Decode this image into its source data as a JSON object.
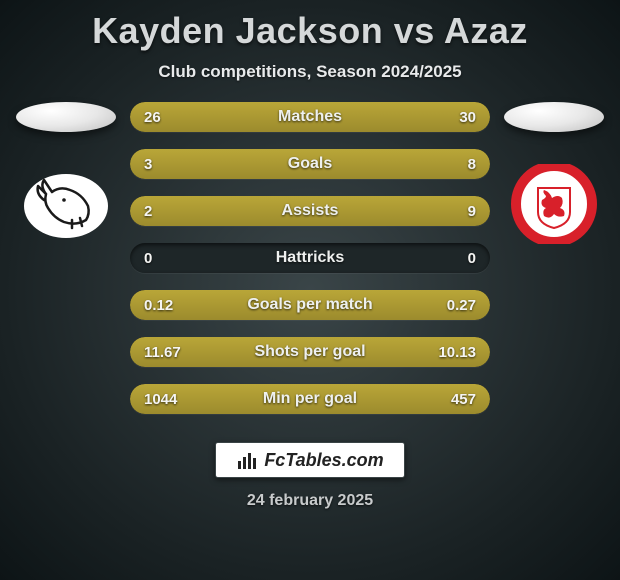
{
  "title": "Kayden Jackson vs Azaz",
  "subtitle": "Club competitions, Season 2024/2025",
  "date": "24 february 2025",
  "brand": "FcTables.com",
  "colors": {
    "bar_fill": "#9c8b2d",
    "bar_bg": "#1e2628",
    "text": "#f5f5f3",
    "background_inner": "#3a4548",
    "background_outer": "#0d1416"
  },
  "left_crest": {
    "type": "ram",
    "bg": "#ffffff",
    "stroke": "#1a1a1a"
  },
  "right_crest": {
    "type": "middlesbrough",
    "bg": "#ffffff",
    "ring": "#d8202a",
    "shield": "#ffffff",
    "lion": "#d8202a"
  },
  "rows": [
    {
      "metric": "Matches",
      "left": "26",
      "right": "30",
      "left_pct": 46,
      "right_pct": 54
    },
    {
      "metric": "Goals",
      "left": "3",
      "right": "8",
      "left_pct": 27,
      "right_pct": 73
    },
    {
      "metric": "Assists",
      "left": "2",
      "right": "9",
      "left_pct": 18,
      "right_pct": 82
    },
    {
      "metric": "Hattricks",
      "left": "0",
      "right": "0",
      "left_pct": 0,
      "right_pct": 0
    },
    {
      "metric": "Goals per match",
      "left": "0.12",
      "right": "0.27",
      "left_pct": 31,
      "right_pct": 69
    },
    {
      "metric": "Shots per goal",
      "left": "11.67",
      "right": "10.13",
      "left_pct": 54,
      "right_pct": 46
    },
    {
      "metric": "Min per goal",
      "left": "1044",
      "right": "457",
      "left_pct": 70,
      "right_pct": 30
    }
  ]
}
